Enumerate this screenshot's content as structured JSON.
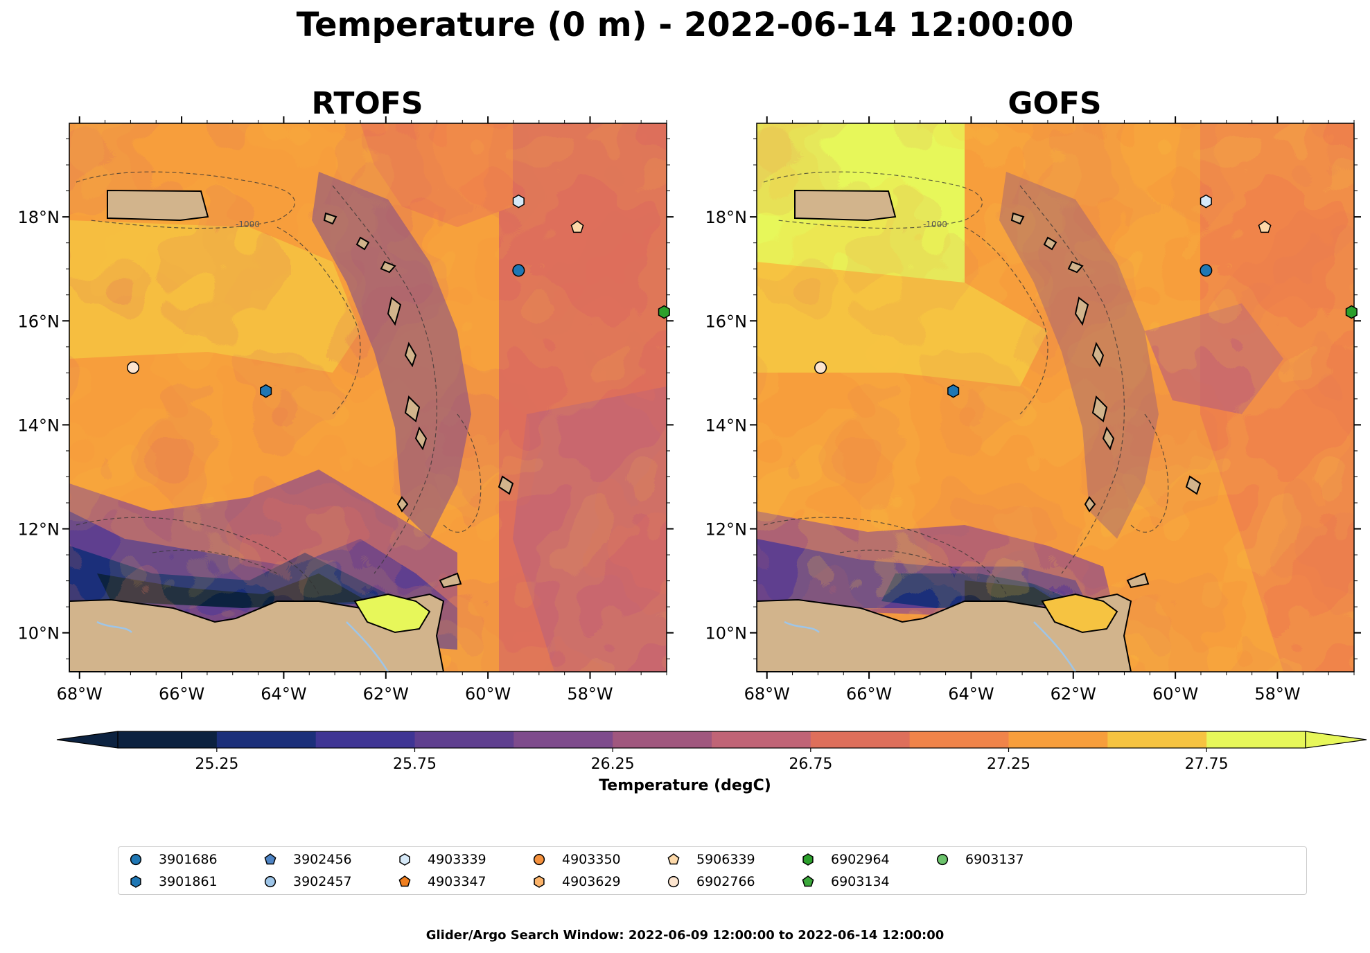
{
  "figure": {
    "title": "Temperature (0 m) - 2022-06-14 12:00:00",
    "footer": "Glider/Argo Search Window: 2022-06-09 12:00:00 to 2022-06-14 12:00:00"
  },
  "panels": [
    {
      "title": "RTOFS"
    },
    {
      "title": "GOFS"
    }
  ],
  "map": {
    "lon_range": [
      -68.2,
      -56.5
    ],
    "lat_range": [
      9.25,
      19.8
    ],
    "lon_ticks": [
      -68,
      -66,
      -64,
      -62,
      -60,
      -58
    ],
    "lat_ticks": [
      10,
      12,
      14,
      16,
      18
    ],
    "lon_tick_labels": [
      "68°W",
      "66°W",
      "64°W",
      "62°W",
      "60°W",
      "58°W"
    ],
    "lat_tick_labels": [
      "10°N",
      "12°N",
      "14°N",
      "16°N",
      "18°N"
    ],
    "contour_label": "-1000",
    "land_color": "#d2b48c",
    "water_color": "#9ec5e8"
  },
  "colorbar": {
    "label": "Temperature (degC)",
    "levels": [
      25.0,
      25.25,
      25.5,
      25.75,
      26.0,
      26.25,
      26.5,
      26.75,
      27.0,
      27.25,
      27.5,
      27.75,
      28.0
    ],
    "colors": [
      "#0c2240",
      "#1b2f7a",
      "#3f3594",
      "#5f3f8f",
      "#7e4b8c",
      "#a0577e",
      "#c06476",
      "#de6f5b",
      "#f0844a",
      "#f79e3c",
      "#f6c341",
      "#e7f75a"
    ],
    "tick_values": [
      25.25,
      25.75,
      26.25,
      26.75,
      27.25,
      27.75
    ],
    "tick_labels": [
      "25.25",
      "25.75",
      "26.25",
      "26.75",
      "27.25",
      "27.75"
    ]
  },
  "floats": [
    {
      "id": "3901686",
      "marker": "circle",
      "color": "#1f77b4",
      "lon": -59.4,
      "lat": 16.97
    },
    {
      "id": "3901861",
      "marker": "hexagon",
      "color": "#1f77b4",
      "lon": -64.35,
      "lat": 14.65
    },
    {
      "id": "3902456",
      "marker": "pentagon",
      "color": "#4e84c4",
      "lon": null,
      "lat": null
    },
    {
      "id": "3902457",
      "marker": "circle",
      "color": "#9ec5e8",
      "lon": null,
      "lat": null
    },
    {
      "id": "4903339",
      "marker": "hexagon",
      "color": "#d6e9f8",
      "lon": -59.4,
      "lat": 18.3
    },
    {
      "id": "4903347",
      "marker": "pentagon",
      "color": "#f07f1f",
      "lon": null,
      "lat": null
    },
    {
      "id": "4903350",
      "marker": "circle",
      "color": "#f5913d",
      "lon": null,
      "lat": null
    },
    {
      "id": "4903629",
      "marker": "hexagon",
      "color": "#fbb36a",
      "lon": null,
      "lat": null
    },
    {
      "id": "5906339",
      "marker": "pentagon",
      "color": "#fdd9a9",
      "lon": -58.25,
      "lat": 17.8
    },
    {
      "id": "6902766",
      "marker": "circle",
      "color": "#fde5cf",
      "lon": -66.95,
      "lat": 15.1
    },
    {
      "id": "6902964",
      "marker": "hexagon",
      "color": "#2ca02c",
      "lon": -56.55,
      "lat": 16.17
    },
    {
      "id": "6903134",
      "marker": "pentagon",
      "color": "#3ba83b",
      "lon": null,
      "lat": null
    },
    {
      "id": "6903137",
      "marker": "circle",
      "color": "#6cc36c",
      "lon": null,
      "lat": null
    }
  ]
}
